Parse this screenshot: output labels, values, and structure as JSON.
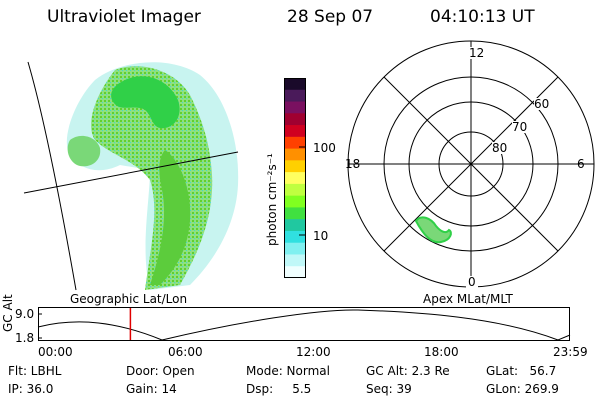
{
  "header": {
    "instrument": "Ultraviolet Imager",
    "date": "28 Sep 07",
    "time": "04:10:13 UT"
  },
  "geo_panel": {
    "label": "Geographic Lat/Lon"
  },
  "colorbar": {
    "unit_label": "photon cm⁻²s⁻¹",
    "ticks": [
      "100",
      "10"
    ],
    "colors": [
      "#1a0a2a",
      "#4a1a5a",
      "#7a1060",
      "#a00030",
      "#d00020",
      "#ff4000",
      "#ff9000",
      "#ffd000",
      "#ffff60",
      "#c0ff40",
      "#80ff20",
      "#40e040",
      "#20c8a0",
      "#30e0e0",
      "#80f0f0",
      "#c0f8f8",
      "#f0ffff"
    ]
  },
  "polar_plot": {
    "label": "Apex MLat/MLT",
    "mlt_labels": {
      "top": "12",
      "left": "18",
      "right": "6",
      "bottom": "0"
    },
    "lat_labels": [
      "60",
      "70",
      "80"
    ]
  },
  "timeline": {
    "axis_label": "GC Alt",
    "y_ticks": [
      "9.0",
      "1.8"
    ],
    "x_ticks": [
      "00:00",
      "06:00",
      "12:00",
      "18:00",
      "23:59"
    ],
    "marker_time_hours": 4.17,
    "marker_color": "#e00000"
  },
  "footer": {
    "filter": "Flt: LBHL",
    "ip": "IP: 36.0",
    "door": "Door: Open",
    "gain": "Gain: 14",
    "mode": "Mode: Normal",
    "dsp": "Dsp:     5.5",
    "gc_alt": "GC Alt: 2.3 Re",
    "seq": "Seq: 39",
    "glat": "GLat:   56.7",
    "glon": "GLon: 269.9"
  }
}
